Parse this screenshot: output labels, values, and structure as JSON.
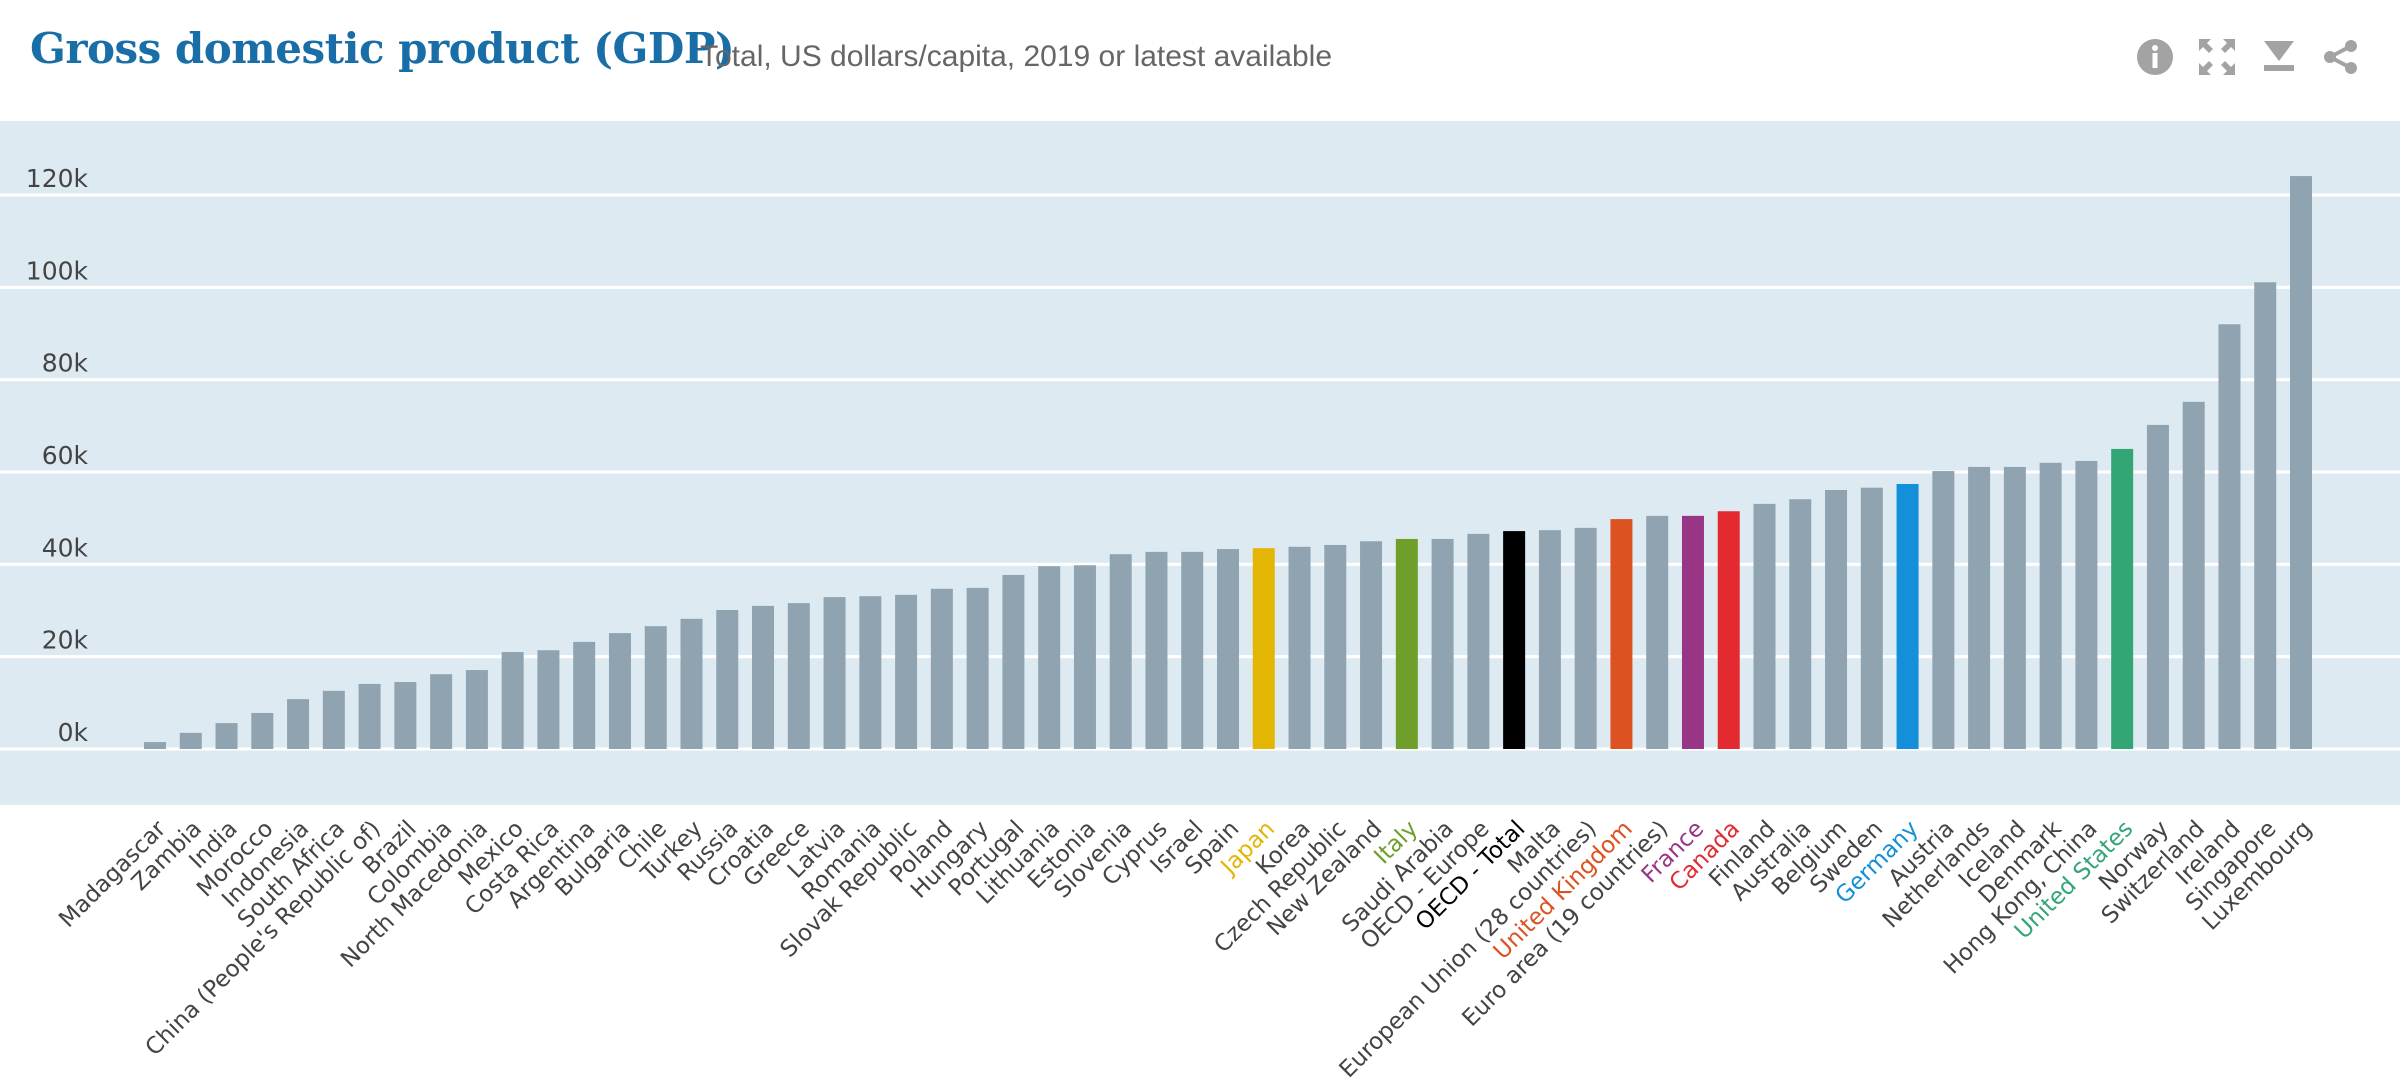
{
  "header": {
    "title": "Gross domestic product (GDP)",
    "subtitle": "Total, US dollars/capita, 2019 or latest available",
    "icons": [
      "info-icon",
      "fullscreen-icon",
      "download-icon",
      "share-icon"
    ]
  },
  "colors": {
    "title": "#1a6ea8",
    "plot_background": "#deeaf2",
    "gridline": "#ffffff",
    "default_bar": "#8fa4b0",
    "default_label": "#444444",
    "icon": "#a3a3a3"
  },
  "chart_data": {
    "type": "bar",
    "title": "Gross domestic product (GDP)",
    "subtitle": "Total, US dollars/capita, 2019 or latest available",
    "xlabel": "",
    "ylabel": "",
    "ylim": [
      -12,
      125
    ],
    "yticks": [
      0,
      20,
      40,
      60,
      80,
      100,
      120
    ],
    "ytick_labels": [
      "0k",
      "20k",
      "40k",
      "60k",
      "80k",
      "100k",
      "120k"
    ],
    "grid": true,
    "legend": "none",
    "unit": "thousand US dollars per capita",
    "categories": [
      "Madagascar",
      "Zambia",
      "India",
      "Morocco",
      "Indonesia",
      "South Africa",
      "China (People's Republic of)",
      "Brazil",
      "Colombia",
      "North Macedonia",
      "Mexico",
      "Costa Rica",
      "Argentina",
      "Bulgaria",
      "Chile",
      "Turkey",
      "Russia",
      "Croatia",
      "Greece",
      "Latvia",
      "Romania",
      "Slovak Republic",
      "Poland",
      "Hungary",
      "Portugal",
      "Lithuania",
      "Estonia",
      "Slovenia",
      "Cyprus",
      "Israel",
      "Spain",
      "Japan",
      "Korea",
      "Czech Republic",
      "New Zealand",
      "Italy",
      "Saudi Arabia",
      "OECD - Europe",
      "OECD - Total",
      "Malta",
      "European Union (28 countries)",
      "United Kingdom",
      "Euro area (19 countries)",
      "France",
      "Canada",
      "Finland",
      "Australia",
      "Belgium",
      "Sweden",
      "Germany",
      "Austria",
      "Netherlands",
      "Iceland",
      "Denmark",
      "Hong Kong, China",
      "United States",
      "Norway",
      "Switzerland",
      "Ireland",
      "Singapore",
      "Luxembourg"
    ],
    "values": [
      1.5,
      3.5,
      5.6,
      7.8,
      10.8,
      12.6,
      14.1,
      14.5,
      16.2,
      17.1,
      21.0,
      21.4,
      23.2,
      25.1,
      26.6,
      28.2,
      30.1,
      31.0,
      31.6,
      32.9,
      33.1,
      33.4,
      34.7,
      34.9,
      37.7,
      39.6,
      39.8,
      42.2,
      42.7,
      42.7,
      43.3,
      43.5,
      43.8,
      44.2,
      45.0,
      45.5,
      45.5,
      46.6,
      47.2,
      47.4,
      47.9,
      49.8,
      50.5,
      50.5,
      51.5,
      53.1,
      54.1,
      56.1,
      56.6,
      57.4,
      60.2,
      61.1,
      61.1,
      62.0,
      62.4,
      65.0,
      70.2,
      75.2,
      92.0,
      101.1,
      124.1
    ],
    "highlights": {
      "Japan": "#e3b505",
      "Italy": "#6f9e2a",
      "OECD - Total": "#000000",
      "United Kingdom": "#dd5221",
      "France": "#983585",
      "Canada": "#e22a30",
      "Germany": "#148fd9",
      "United States": "#34a676"
    }
  }
}
